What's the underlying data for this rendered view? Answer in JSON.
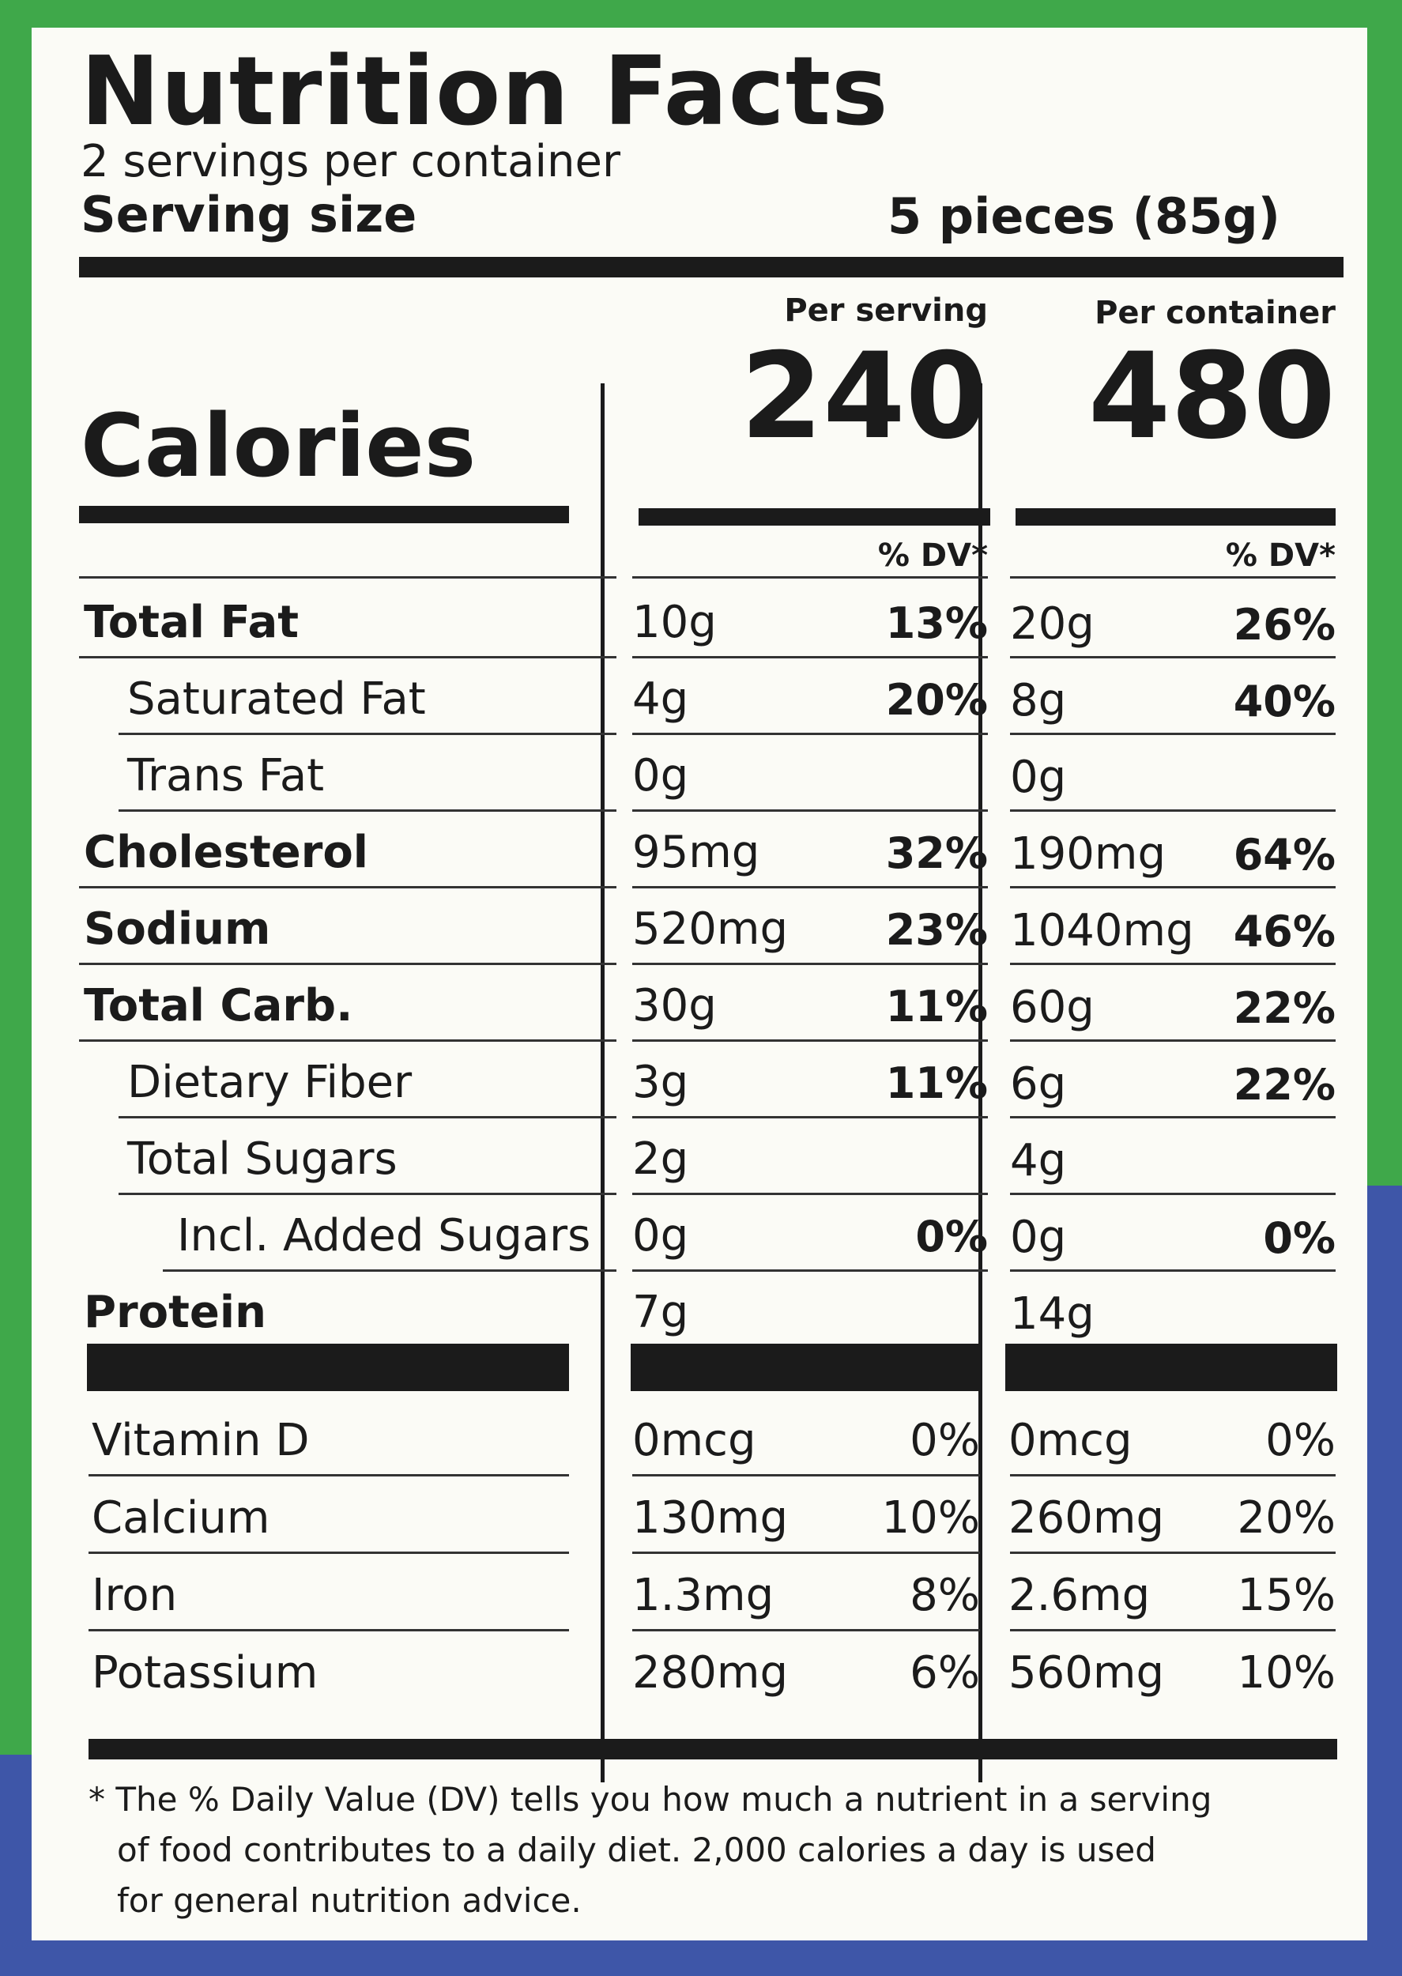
{
  "panel": {
    "title": "Nutrition Facts",
    "servings": "2 servings per container",
    "serving_size_label": "Serving size",
    "serving_size_value": "5 pieces (85g)",
    "calories_label": "Calories",
    "per_serving_label": "Per serving",
    "per_container_label": "Per container",
    "calories_serving": "240",
    "calories_container": "480",
    "dv_header": "% DV*"
  },
  "nutrients": [
    {
      "label": "Total Fat",
      "bold": true,
      "s_amt": "10g",
      "s_dv": "13%",
      "c_amt": "20g",
      "c_dv": "26%"
    },
    {
      "label": "Saturated Fat",
      "bold": false,
      "indent": 1,
      "s_amt": "4g",
      "s_dv": "20%",
      "c_amt": "8g",
      "c_dv": "40%"
    },
    {
      "label": "Trans Fat",
      "bold": false,
      "indent": 1,
      "s_amt": "0g",
      "s_dv": "",
      "c_amt": "0g",
      "c_dv": ""
    },
    {
      "label": "Cholesterol",
      "bold": true,
      "s_amt": "95mg",
      "s_dv": "32%",
      "c_amt": "190mg",
      "c_dv": "64%"
    },
    {
      "label": "Sodium",
      "bold": true,
      "s_amt": "520mg",
      "s_dv": "23%",
      "c_amt": "1040mg",
      "c_dv": "46%"
    },
    {
      "label": "Total Carb.",
      "bold": true,
      "s_amt": "30g",
      "s_dv": "11%",
      "c_amt": "60g",
      "c_dv": "22%"
    },
    {
      "label": "Dietary Fiber",
      "bold": false,
      "indent": 1,
      "s_amt": "3g",
      "s_dv": "11%",
      "c_amt": "6g",
      "c_dv": "22%"
    },
    {
      "label": "Total Sugars",
      "bold": false,
      "indent": 1,
      "s_amt": "2g",
      "s_dv": "",
      "c_amt": "4g",
      "c_dv": ""
    },
    {
      "label": "Incl. Added Sugars",
      "bold": false,
      "indent": 2,
      "s_amt": "0g",
      "s_dv": "0%",
      "c_amt": "0g",
      "c_dv": "0%"
    },
    {
      "label": "Protein",
      "bold": true,
      "s_amt": "7g",
      "s_dv": "",
      "c_amt": "14g",
      "c_dv": ""
    }
  ],
  "vitamins": [
    {
      "label": "Vitamin D",
      "s_amt": "0mcg",
      "s_dv": "0%",
      "c_amt": "0mcg",
      "c_dv": "0%"
    },
    {
      "label": "Calcium",
      "s_amt": "130mg",
      "s_dv": "10%",
      "c_amt": "260mg",
      "c_dv": "20%"
    },
    {
      "label": "Iron",
      "s_amt": "1.3mg",
      "s_dv": "8%",
      "c_amt": "2.6mg",
      "c_dv": "15%"
    },
    {
      "label": "Potassium",
      "s_amt": "280mg",
      "s_dv": "6%",
      "c_amt": "560mg",
      "c_dv": "10%"
    }
  ],
  "footnote": [
    "* The % Daily Value (DV) tells you how much a nutrient in a serving",
    "of food contributes to a daily diet. 2,000 calories a day is used",
    "for general nutrition advice."
  ]
}
